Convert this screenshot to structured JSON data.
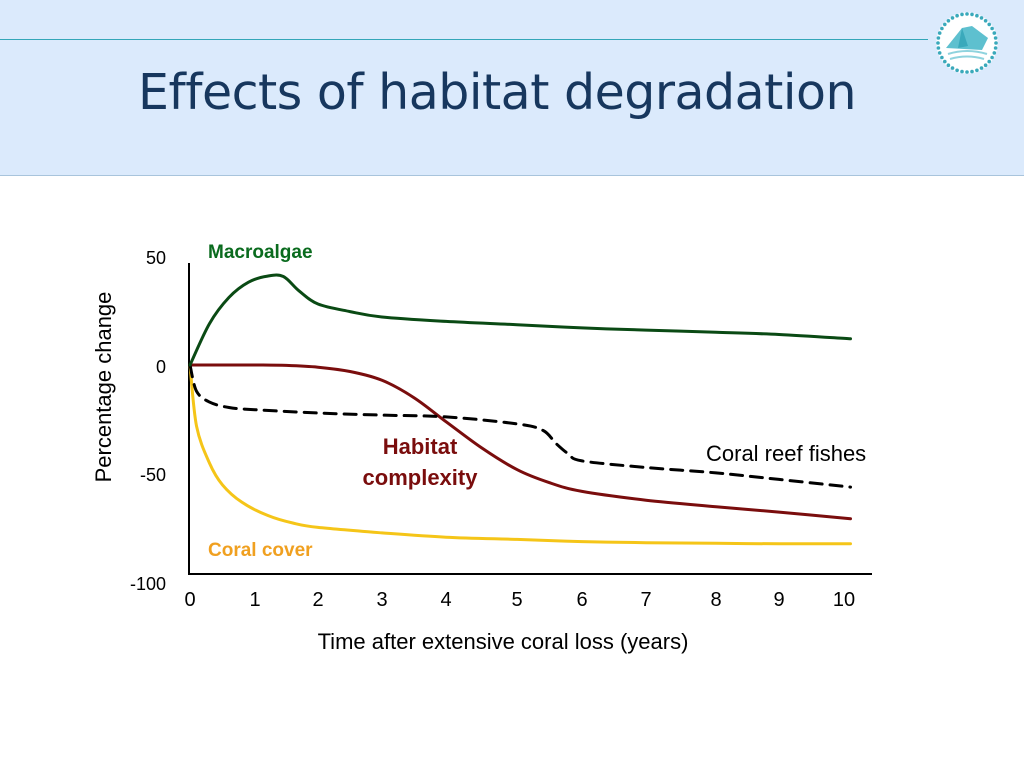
{
  "slide": {
    "title": "Effects of habitat degradation",
    "logo_name": "organisation-logo"
  },
  "colors": {
    "header_bg": "#dbeafc",
    "title": "#17375e",
    "rule": "#33a6b8",
    "macroalgae": "#0a4a14",
    "habitat_complexity": "#7a0d0d",
    "coral_reef_fishes": "#000000",
    "coral_cover": "#f5c518",
    "coral_cover_label": "#f0a020"
  },
  "chart_data": {
    "type": "line",
    "xlabel": "Time after extensive coral loss (years)",
    "ylabel": "Percentage change",
    "xlim": [
      0,
      10.5
    ],
    "ylim": [
      -100,
      50
    ],
    "x_ticks": [
      "0",
      "1",
      "2",
      "3",
      "4",
      "5",
      "6",
      "7",
      "8",
      "9",
      "10"
    ],
    "y_ticks": [
      "50",
      "0",
      "-50",
      "-100"
    ],
    "grid": false,
    "legend": "labels placed directly on lines",
    "series": [
      {
        "name": "Macroalgae",
        "style": "solid",
        "x": [
          0,
          0.3,
          0.6,
          0.9,
          1.2,
          1.45,
          1.7,
          2.0,
          2.5,
          3,
          4,
          5,
          6,
          7,
          8,
          9,
          10.1
        ],
        "y": [
          0,
          19,
          31,
          38,
          40.8,
          40.6,
          34,
          28,
          24.5,
          22,
          20,
          18.5,
          17,
          16,
          15,
          14,
          12
        ]
      },
      {
        "name": "Habitat complexity",
        "style": "solid",
        "x": [
          0,
          0.5,
          1,
          1.5,
          2,
          2.5,
          3,
          3.5,
          4,
          4.5,
          5,
          5.5,
          6,
          7,
          8,
          9,
          10.1
        ],
        "y": [
          0,
          0,
          0,
          -0.2,
          -1,
          -3,
          -7,
          -15,
          -26,
          -38,
          -48,
          -54,
          -58,
          -62,
          -65,
          -67.5,
          -70.5
        ]
      },
      {
        "name": "Coral reef fishes",
        "style": "dashed",
        "x": [
          0,
          0.1,
          0.3,
          0.6,
          1,
          2,
          3,
          4,
          5,
          5.4,
          5.6,
          5.8,
          6,
          7,
          8,
          9,
          10.1
        ],
        "y": [
          0,
          -12,
          -17,
          -19.5,
          -20.5,
          -22,
          -23,
          -23.8,
          -27,
          -30,
          -36,
          -41,
          -44,
          -47,
          -49.5,
          -52.5,
          -56
        ]
      },
      {
        "name": "Coral cover",
        "style": "solid",
        "x": [
          0,
          0.1,
          0.3,
          0.5,
          0.8,
          1.2,
          1.6,
          2,
          3,
          4,
          5,
          6,
          7,
          8,
          9,
          10.1
        ],
        "y": [
          0,
          -28,
          -45,
          -55,
          -63,
          -69,
          -72.5,
          -74.5,
          -77,
          -79,
          -80,
          -81,
          -81.5,
          -81.8,
          -82,
          -82
        ]
      }
    ],
    "annotations": {
      "macroalgae": "Macroalgae",
      "habitat_line1": "Habitat",
      "habitat_line2": "complexity",
      "coral_reef_fishes": "Coral reef fishes",
      "coral_cover": "Coral cover"
    }
  }
}
